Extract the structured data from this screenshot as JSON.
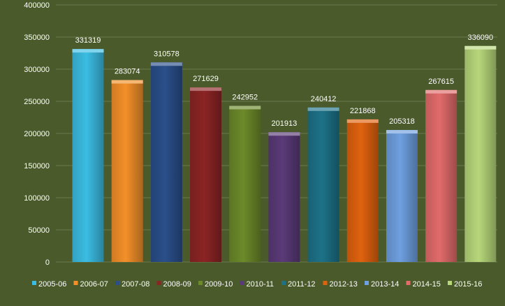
{
  "chart_data": {
    "type": "bar",
    "title": "",
    "xlabel": "",
    "ylabel": "",
    "categories": [
      "2005-06",
      "2006-07",
      "2007-08",
      "2008-09",
      "2009-10",
      "2010-11",
      "2011-12",
      "2012-13",
      "2013-14",
      "2014-15",
      "2015-16"
    ],
    "values": [
      331319,
      283074,
      310578,
      271629,
      242952,
      201913,
      240412,
      221868,
      205318,
      267615,
      336090
    ],
    "ylim": [
      0,
      400000
    ],
    "yticks": [
      0,
      50000,
      100000,
      150000,
      200000,
      250000,
      300000,
      350000,
      400000
    ],
    "grid": true,
    "legend_position": "bottom",
    "colors": [
      "#3bbde3",
      "#f39029",
      "#2a4f8a",
      "#8c2424",
      "#6c8a2a",
      "#5a3a78",
      "#1d7288",
      "#e0620e",
      "#6e9fe0",
      "#e26b6b",
      "#b7d77a"
    ],
    "background": "#4a5a2b"
  }
}
